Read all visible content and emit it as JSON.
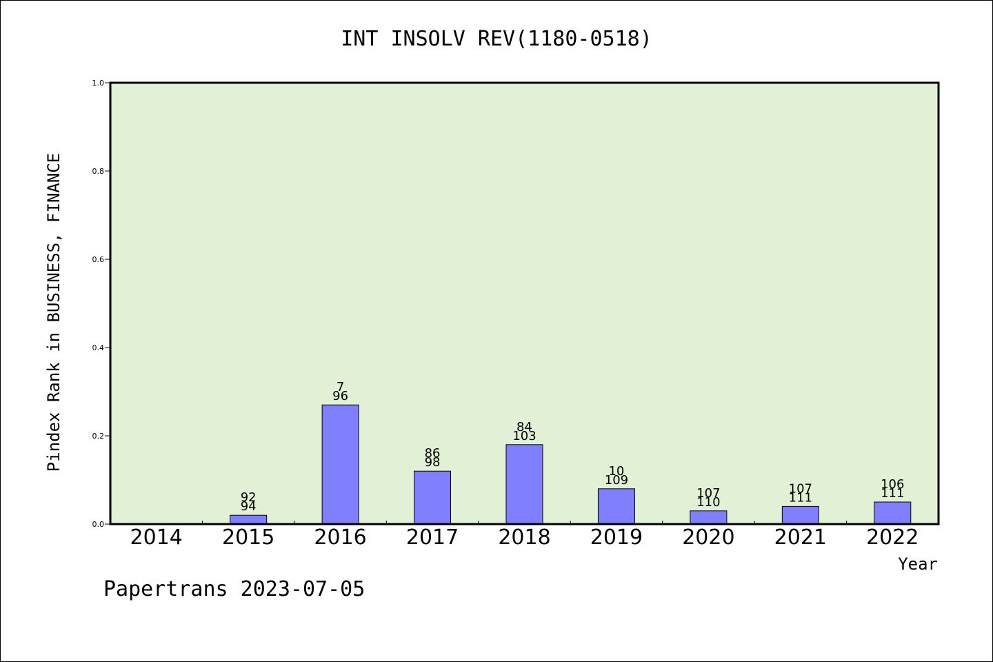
{
  "chart_data": {
    "type": "bar",
    "title": "INT INSOLV REV(1180-0518)",
    "xlabel": "Year",
    "ylabel": "Pindex Rank in BUSINESS, FINANCE",
    "ylim": [
      0.0,
      1.0
    ],
    "yticks": [
      "0.0",
      "0.2",
      "0.4",
      "0.6",
      "0.8",
      "1.0"
    ],
    "categories": [
      "2014",
      "2015",
      "2016",
      "2017",
      "2018",
      "2019",
      "2020",
      "2021",
      "2022"
    ],
    "values": [
      null,
      0.02,
      0.27,
      0.12,
      0.18,
      0.08,
      0.03,
      0.04,
      0.05
    ],
    "labels_top": [
      "",
      "92",
      "7",
      "86",
      "84",
      "10",
      "107",
      "107",
      "106"
    ],
    "labels_bottom": [
      "",
      "94",
      "96",
      "98",
      "103",
      "109",
      "110",
      "111",
      "111"
    ],
    "grid": false,
    "colors": {
      "bar": "#8080ff",
      "plot_bg": "#e2f0d6",
      "bar_edge": "#000000"
    }
  },
  "footer": "Papertrans 2023-07-05"
}
